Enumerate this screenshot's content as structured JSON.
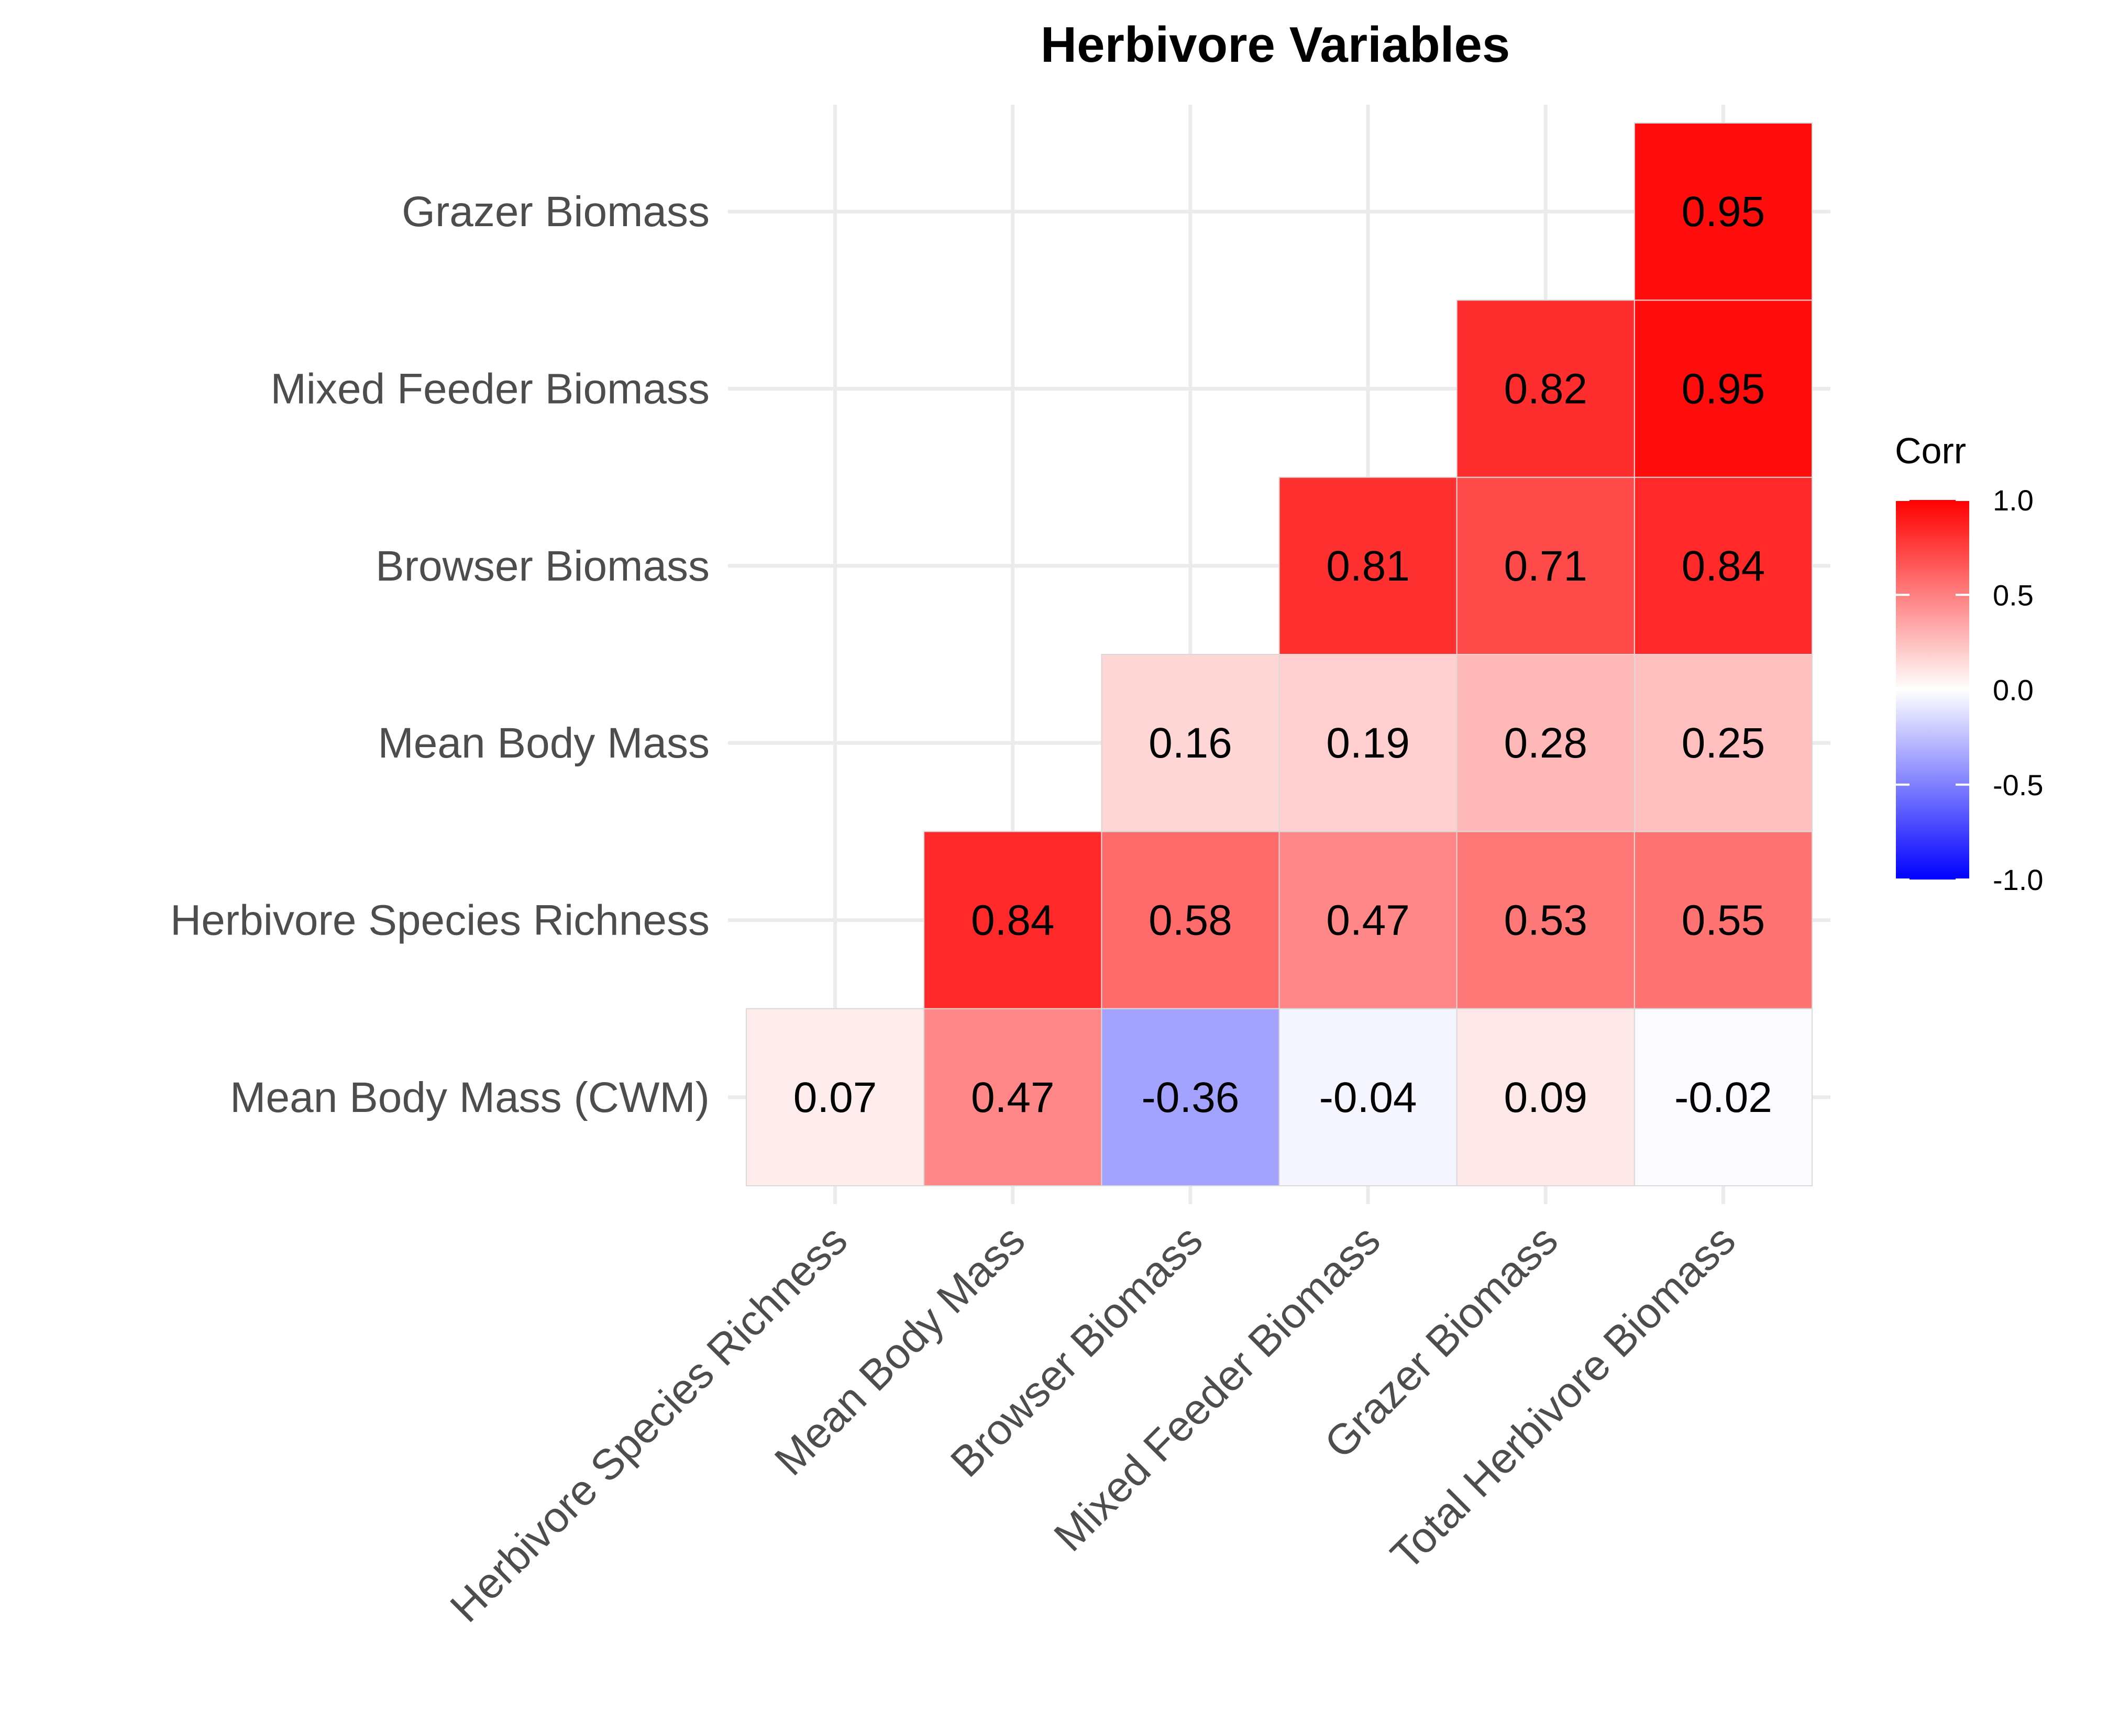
{
  "chart_data": {
    "type": "heatmap",
    "title": "Herbivore Variables",
    "x_categories": [
      "Herbivore Species Richness",
      "Mean Body Mass",
      "Browser Biomass",
      "Mixed Feeder Biomass",
      "Grazer Biomass",
      "Total Herbivore Biomass"
    ],
    "y_categories": [
      "Mean Body Mass (CWM)",
      "Herbivore Species Richness",
      "Mean Body Mass",
      "Browser Biomass",
      "Mixed Feeder Biomass",
      "Grazer Biomass"
    ],
    "values": [
      [
        0.07,
        0.47,
        -0.36,
        -0.04,
        0.09,
        -0.02
      ],
      [
        null,
        0.84,
        0.58,
        0.47,
        0.53,
        0.55
      ],
      [
        null,
        null,
        0.16,
        0.19,
        0.28,
        0.25
      ],
      [
        null,
        null,
        null,
        0.81,
        0.71,
        0.84
      ],
      [
        null,
        null,
        null,
        null,
        0.82,
        0.95
      ],
      [
        null,
        null,
        null,
        null,
        null,
        0.95
      ]
    ],
    "labels": [
      [
        "0.07",
        "0.47",
        "-0.36",
        "-0.04",
        "0.09",
        "-0.02"
      ],
      [
        "",
        "0.84",
        "0.58",
        "0.47",
        "0.53",
        "0.55"
      ],
      [
        "",
        "",
        "0.16",
        "0.19",
        "0.28",
        "0.25"
      ],
      [
        "",
        "",
        "",
        "0.81",
        "0.71",
        "0.84"
      ],
      [
        "",
        "",
        "",
        "",
        "0.82",
        "0.95"
      ],
      [
        "",
        "",
        "",
        "",
        "",
        "0.95"
      ]
    ],
    "legend": {
      "title": "Corr",
      "placement": "right",
      "ticks": [
        "1.0",
        "0.5",
        "0.0",
        "-0.5",
        "-1.0"
      ],
      "tick_values": [
        1.0,
        0.5,
        0.0,
        -0.5,
        -1.0
      ],
      "range": [
        -1,
        1
      ]
    },
    "colors": {
      "low": "#0000ff",
      "mid": "#ffffff",
      "high": "#ff0000"
    },
    "grid": true
  }
}
